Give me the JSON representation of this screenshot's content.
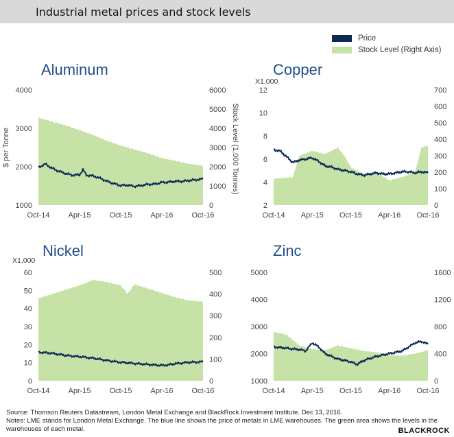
{
  "header": {
    "title": "Industrial metal prices and stock levels"
  },
  "legend": {
    "items": [
      {
        "label": "Price",
        "color": "#0d2a55"
      },
      {
        "label": "Stock Level (Right Axis)",
        "color": "#c6e2a6"
      }
    ]
  },
  "colors": {
    "price": "#0d2a55",
    "stock": "#c6e2a6",
    "title": "#1f4e8c"
  },
  "chart_data": [
    {
      "type": "area",
      "title": "Aluminum",
      "y_multiplier_label": "",
      "ylabel": "$ per Tonne",
      "y2label": "Stock Level (1,000 Tonnes)",
      "ylim": [
        1000,
        4000
      ],
      "yticks": [
        1000,
        2000,
        3000,
        4000
      ],
      "ytick_labels": [
        "1000",
        "2000",
        "3000",
        "4000"
      ],
      "y2lim": [
        0,
        6000
      ],
      "y2ticks": [
        0,
        1000,
        2000,
        3000,
        4000,
        5000,
        6000
      ],
      "y2tick_labels": [
        "0",
        "1000",
        "2000",
        "3000",
        "4000",
        "5000",
        "6000"
      ],
      "x_labels": [
        "Oct-14",
        "Apr-15",
        "Oct-15",
        "Apr-16",
        "Oct-16"
      ],
      "price": [
        [
          0,
          1980
        ],
        [
          1,
          2070
        ],
        [
          2,
          1960
        ],
        [
          3,
          1880
        ],
        [
          4,
          1820
        ],
        [
          5,
          1780
        ],
        [
          6,
          1790
        ],
        [
          6.5,
          1920
        ],
        [
          7,
          1780
        ],
        [
          8,
          1760
        ],
        [
          9,
          1700
        ],
        [
          10,
          1620
        ],
        [
          11,
          1560
        ],
        [
          12,
          1510
        ],
        [
          13,
          1520
        ],
        [
          14,
          1490
        ],
        [
          15,
          1510
        ],
        [
          16,
          1540
        ],
        [
          17,
          1550
        ],
        [
          18,
          1590
        ],
        [
          19,
          1600
        ],
        [
          20,
          1620
        ],
        [
          21,
          1620
        ],
        [
          22,
          1640
        ],
        [
          23,
          1660
        ],
        [
          24,
          1680
        ]
      ],
      "stock": [
        [
          0,
          4550
        ],
        [
          2,
          4350
        ],
        [
          4,
          4150
        ],
        [
          6,
          3900
        ],
        [
          8,
          3650
        ],
        [
          10,
          3350
        ],
        [
          12,
          3100
        ],
        [
          14,
          2900
        ],
        [
          16,
          2700
        ],
        [
          18,
          2450
        ],
        [
          20,
          2300
        ],
        [
          22,
          2150
        ],
        [
          24,
          2050
        ]
      ]
    },
    {
      "type": "area",
      "title": "Copper",
      "y_multiplier_label": "X1,000",
      "ylabel": "",
      "y2label": "",
      "ylim": [
        2,
        12
      ],
      "yticks": [
        2,
        4,
        6,
        8,
        10,
        12
      ],
      "ytick_labels": [
        "2",
        "4",
        "6",
        "8",
        "10",
        "12"
      ],
      "y2lim": [
        0,
        700
      ],
      "y2ticks": [
        0,
        100,
        200,
        300,
        400,
        500,
        600,
        700
      ],
      "y2tick_labels": [
        "0",
        "100",
        "200",
        "300",
        "400",
        "500",
        "600",
        "700"
      ],
      "x_labels": [
        "Oct-14",
        "Apr-15",
        "Oct-15",
        "Apr-16",
        "Oct-16"
      ],
      "price": [
        [
          0,
          6.8
        ],
        [
          1,
          6.7
        ],
        [
          2,
          6.2
        ],
        [
          3,
          5.7
        ],
        [
          4,
          5.9
        ],
        [
          5,
          6.0
        ],
        [
          6,
          6.1
        ],
        [
          7,
          5.8
        ],
        [
          8,
          5.4
        ],
        [
          9,
          5.3
        ],
        [
          10,
          5.1
        ],
        [
          11,
          5.0
        ],
        [
          12,
          4.9
        ],
        [
          13,
          4.7
        ],
        [
          14,
          4.6
        ],
        [
          15,
          4.7
        ],
        [
          16,
          4.8
        ],
        [
          17,
          4.7
        ],
        [
          18,
          4.7
        ],
        [
          19,
          4.8
        ],
        [
          20,
          4.9
        ],
        [
          21,
          4.9
        ],
        [
          22,
          4.8
        ],
        [
          23,
          4.9
        ],
        [
          24,
          4.8
        ]
      ],
      "stock": [
        [
          0,
          160
        ],
        [
          3,
          170
        ],
        [
          4,
          300
        ],
        [
          6,
          330
        ],
        [
          8,
          310
        ],
        [
          10,
          350
        ],
        [
          11,
          300
        ],
        [
          12,
          230
        ],
        [
          14,
          190
        ],
        [
          16,
          200
        ],
        [
          18,
          150
        ],
        [
          20,
          170
        ],
        [
          22,
          200
        ],
        [
          23,
          350
        ],
        [
          24,
          360
        ]
      ]
    },
    {
      "type": "area",
      "title": "Nickel",
      "y_multiplier_label": "X1,000",
      "ylabel": "",
      "y2label": "",
      "ylim": [
        0,
        60
      ],
      "yticks": [
        0,
        10,
        20,
        30,
        40,
        50,
        60
      ],
      "ytick_labels": [
        "0",
        "10",
        "20",
        "30",
        "40",
        "50",
        "60"
      ],
      "y2lim": [
        0,
        500
      ],
      "y2ticks": [
        0,
        100,
        200,
        300,
        400,
        500
      ],
      "y2tick_labels": [
        "0",
        "100",
        "200",
        "300",
        "400",
        "500"
      ],
      "x_labels": [
        "Oct-14",
        "Apr-15",
        "Oct-15",
        "Apr-16",
        "Oct-16"
      ],
      "price": [
        [
          0,
          15.8
        ],
        [
          2,
          15.2
        ],
        [
          4,
          14.0
        ],
        [
          6,
          13.3
        ],
        [
          8,
          12.5
        ],
        [
          10,
          11.2
        ],
        [
          12,
          10.2
        ],
        [
          14,
          9.6
        ],
        [
          16,
          9.0
        ],
        [
          18,
          8.5
        ],
        [
          19,
          8.8
        ],
        [
          20,
          9.5
        ],
        [
          22,
          10.2
        ],
        [
          24,
          10.5
        ]
      ],
      "stock": [
        [
          0,
          380
        ],
        [
          2,
          400
        ],
        [
          4,
          420
        ],
        [
          6,
          440
        ],
        [
          8,
          465
        ],
        [
          10,
          455
        ],
        [
          12,
          440
        ],
        [
          13,
          400
        ],
        [
          14,
          445
        ],
        [
          16,
          425
        ],
        [
          18,
          405
        ],
        [
          20,
          385
        ],
        [
          22,
          370
        ],
        [
          24,
          365
        ]
      ]
    },
    {
      "type": "area",
      "title": "Zinc",
      "y_multiplier_label": "",
      "ylabel": "",
      "y2label": "",
      "ylim": [
        1000,
        5000
      ],
      "yticks": [
        1000,
        2000,
        3000,
        4000,
        5000
      ],
      "ytick_labels": [
        "1000",
        "2000",
        "3000",
        "4000",
        "5000"
      ],
      "y2lim": [
        0,
        1600
      ],
      "y2ticks": [
        0,
        400,
        800,
        1200,
        1600
      ],
      "y2tick_labels": [
        "0",
        "400",
        "800",
        "1200",
        "1600"
      ],
      "x_labels": [
        "Oct-14",
        "Apr-15",
        "Oct-15",
        "Apr-16",
        "Oct-16"
      ],
      "price": [
        [
          0,
          2250
        ],
        [
          2,
          2200
        ],
        [
          4,
          2150
        ],
        [
          5,
          2100
        ],
        [
          6,
          2400
        ],
        [
          7,
          2250
        ],
        [
          8,
          2000
        ],
        [
          10,
          1800
        ],
        [
          12,
          1700
        ],
        [
          13,
          1600
        ],
        [
          14,
          1750
        ],
        [
          16,
          1900
        ],
        [
          18,
          2000
        ],
        [
          20,
          2100
        ],
        [
          22,
          2400
        ],
        [
          23,
          2450
        ],
        [
          24,
          2350
        ]
      ],
      "stock": [
        [
          0,
          720
        ],
        [
          2,
          680
        ],
        [
          4,
          520
        ],
        [
          6,
          470
        ],
        [
          8,
          450
        ],
        [
          10,
          520
        ],
        [
          12,
          480
        ],
        [
          14,
          440
        ],
        [
          16,
          420
        ],
        [
          18,
          380
        ],
        [
          20,
          370
        ],
        [
          22,
          400
        ],
        [
          24,
          450
        ]
      ]
    }
  ],
  "footer": {
    "source": "Source: Thomson Reuters Datastream, London Metal Exchange and BlackRock Investment Institute. Dec 13, 2016.",
    "notes": "Notes: LME stands for London Metal Exchange. The blue line shows the price of metals in LME warehouses. The green area shows the levels in the warehouses of each metal.",
    "brand": "BLACKROCK"
  }
}
